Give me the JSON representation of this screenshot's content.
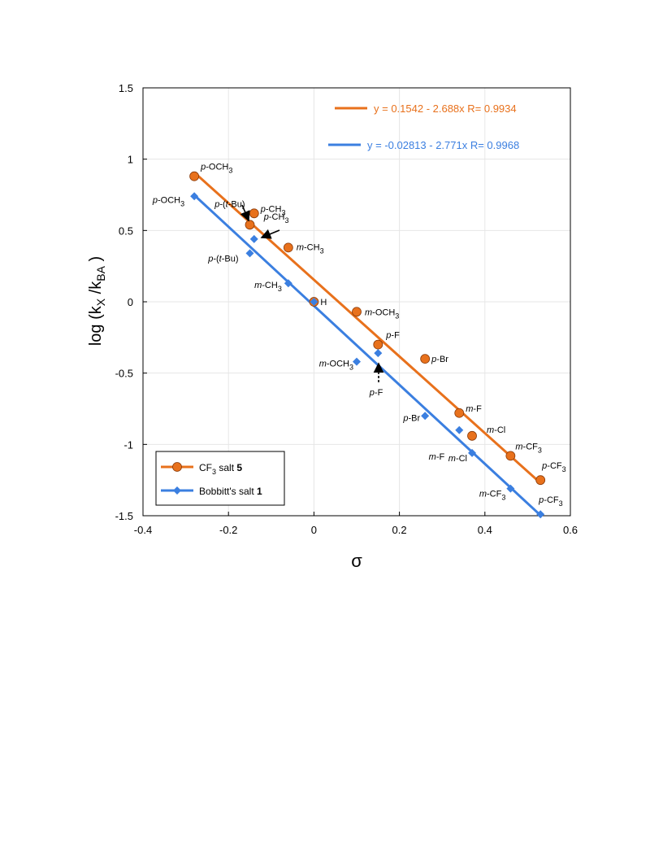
{
  "chart_data": {
    "type": "scatter",
    "title": "",
    "xlabel": "σ",
    "ylabel": "log (k_X /k_BA )",
    "xlim": [
      -0.4,
      0.6
    ],
    "ylim": [
      -1.5,
      1.5
    ],
    "xticks": [
      "-0.4",
      "-0.2",
      "0",
      "0.2",
      "0.4",
      "0.6"
    ],
    "yticks": [
      "1.5",
      "1",
      "0.5",
      "0",
      "-0.5",
      "-1",
      "-1.5"
    ],
    "grid": true,
    "legend_position": "bottom-left",
    "series": [
      {
        "name": "CF3 salt 5",
        "color": "#E8711C",
        "marker": "circle",
        "fit": {
          "intercept": 0.1542,
          "slope": -2.688,
          "label": "y = 0.1542 - 2.688x   R= 0.9934"
        },
        "points": [
          {
            "label": "p-OCH3",
            "x": -0.28,
            "y": 0.88
          },
          {
            "label": "p-(t-Bu)",
            "x": -0.15,
            "y": 0.54
          },
          {
            "label": "p-CH3",
            "x": -0.14,
            "y": 0.62
          },
          {
            "label": "m-CH3",
            "x": -0.06,
            "y": 0.38
          },
          {
            "label": "H",
            "x": 0.0,
            "y": 0.0
          },
          {
            "label": "m-OCH3",
            "x": 0.1,
            "y": -0.07
          },
          {
            "label": "p-F",
            "x": 0.15,
            "y": -0.3
          },
          {
            "label": "p-Br",
            "x": 0.26,
            "y": -0.4
          },
          {
            "label": "m-F",
            "x": 0.34,
            "y": -0.78
          },
          {
            "label": "m-Cl",
            "x": 0.37,
            "y": -0.94
          },
          {
            "label": "m-CF3",
            "x": 0.46,
            "y": -1.08
          },
          {
            "label": "p-CF3",
            "x": 0.53,
            "y": -1.25
          }
        ]
      },
      {
        "name": "Bobbitt's salt 1",
        "color": "#3B7FE0",
        "marker": "diamond",
        "fit": {
          "intercept": -0.02813,
          "slope": -2.771,
          "label": "y = -0.02813 - 2.771x   R= 0.9968"
        },
        "points": [
          {
            "label": "p-OCH3",
            "x": -0.28,
            "y": 0.74
          },
          {
            "label": "p-(t-Bu)",
            "x": -0.15,
            "y": 0.34
          },
          {
            "label": "p-CH3",
            "x": -0.14,
            "y": 0.44
          },
          {
            "label": "m-CH3",
            "x": -0.06,
            "y": 0.13
          },
          {
            "label": "H",
            "x": 0.0,
            "y": 0.0
          },
          {
            "label": "m-OCH3",
            "x": 0.1,
            "y": -0.42
          },
          {
            "label": "p-F",
            "x": 0.15,
            "y": -0.36
          },
          {
            "label": "p-Br",
            "x": 0.26,
            "y": -0.8
          },
          {
            "label": "m-F",
            "x": 0.34,
            "y": -0.9
          },
          {
            "label": "m-Cl",
            "x": 0.37,
            "y": -1.06
          },
          {
            "label": "m-CF3",
            "x": 0.46,
            "y": -1.31
          },
          {
            "label": "p-CF3",
            "x": 0.53,
            "y": -1.49
          }
        ]
      }
    ]
  },
  "legend": {
    "items": [
      {
        "prefix": "CF",
        "sub": "3",
        "text": " salt ",
        "bold": "5"
      },
      {
        "prefix": "Bobbitt's salt ",
        "sub": "",
        "text": "",
        "bold": "1"
      }
    ]
  }
}
